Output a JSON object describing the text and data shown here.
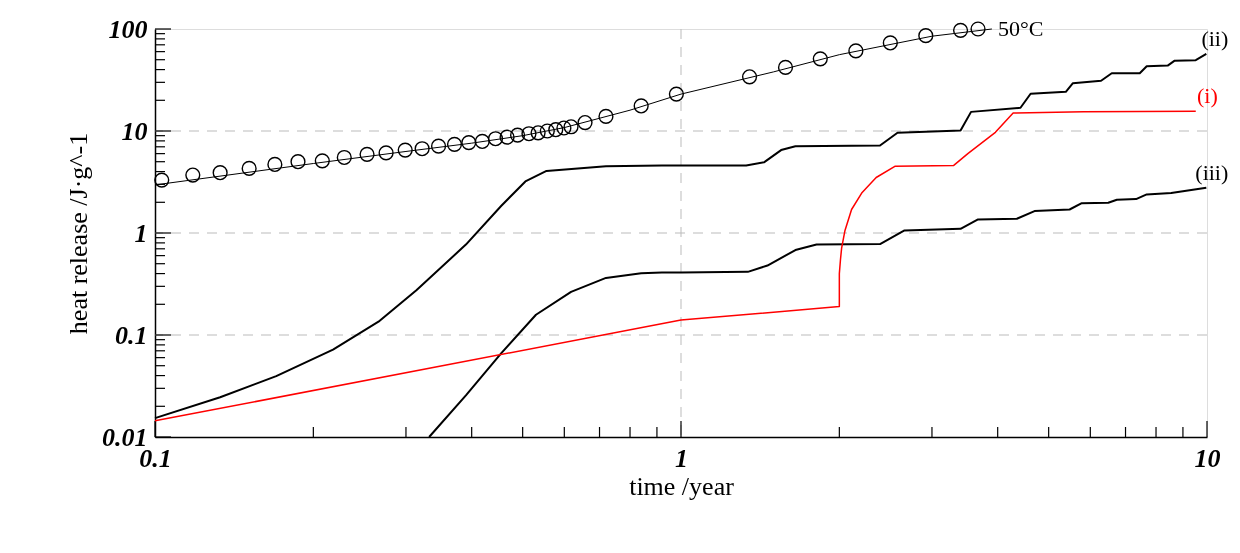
{
  "chart_data": {
    "type": "line",
    "xlabel": "time /year",
    "ylabel": "heat release /J·g^-1",
    "log": "xy",
    "grid": true,
    "legend": false,
    "xlim": [
      0.1,
      10
    ],
    "ylim": [
      0.01,
      100
    ],
    "xticks": [
      0.1,
      {
        "value": 0.2,
        "label": null
      },
      {
        "value": 0.3,
        "label": null
      },
      {
        "value": 0.4,
        "label": null
      },
      {
        "value": 0.5,
        "label": null
      },
      {
        "value": 0.6,
        "label": null
      },
      {
        "value": 0.7,
        "label": null
      },
      {
        "value": 0.8,
        "label": null
      },
      {
        "value": 0.9,
        "label": null
      },
      1,
      {
        "value": 2,
        "label": null
      },
      {
        "value": 3,
        "label": null
      },
      {
        "value": 4,
        "label": null
      },
      {
        "value": 5,
        "label": null
      },
      {
        "value": 6,
        "label": null
      },
      {
        "value": 7,
        "label": null
      },
      {
        "value": 8,
        "label": null
      },
      {
        "value": 9,
        "label": null
      },
      10
    ],
    "yticks": [
      0.01,
      {
        "value": 0.02,
        "label": null
      },
      {
        "value": 0.03,
        "label": null
      },
      {
        "value": 0.04,
        "label": null
      },
      {
        "value": 0.05,
        "label": null
      },
      {
        "value": 0.06,
        "label": null
      },
      {
        "value": 0.07,
        "label": null
      },
      {
        "value": 0.08,
        "label": null
      },
      {
        "value": 0.09,
        "label": null
      },
      0.1,
      {
        "value": 0.2,
        "label": null
      },
      {
        "value": 0.3,
        "label": null
      },
      {
        "value": 0.4,
        "label": null
      },
      {
        "value": 0.5,
        "label": null
      },
      {
        "value": 0.6,
        "label": null
      },
      {
        "value": 0.7,
        "label": null
      },
      {
        "value": 0.8,
        "label": null
      },
      {
        "value": 0.9,
        "label": null
      },
      1,
      {
        "value": 2,
        "label": null
      },
      {
        "value": 3,
        "label": null
      },
      {
        "value": 4,
        "label": null
      },
      {
        "value": 5,
        "label": null
      },
      {
        "value": 6,
        "label": null
      },
      {
        "value": 7,
        "label": null
      },
      {
        "value": 8,
        "label": null
      },
      {
        "value": 9,
        "label": null
      },
      10,
      {
        "value": 20,
        "label": null
      },
      {
        "value": 30,
        "label": null
      },
      {
        "value": 40,
        "label": null
      },
      {
        "value": 50,
        "label": null
      },
      {
        "value": 60,
        "label": null
      },
      {
        "value": 70,
        "label": null
      },
      {
        "value": 80,
        "label": null
      },
      {
        "value": 90,
        "label": null
      },
      100
    ],
    "series": [
      {
        "type": "scatter",
        "marker": "circle",
        "color": "#000000",
        "x": [
          0.103,
          0.118,
          0.133,
          0.151,
          0.169,
          0.187,
          0.208,
          0.229,
          0.253,
          0.275,
          0.299,
          0.322,
          0.346,
          0.371,
          0.395,
          0.419,
          0.444,
          0.467,
          0.489,
          0.514,
          0.535,
          0.557,
          0.578,
          0.599,
          0.618,
          0.657,
          0.72,
          0.84,
          0.98,
          1.35,
          1.58,
          1.84,
          2.15,
          2.5,
          2.92,
          3.4,
          3.67
        ],
        "values": [
          3.3,
          3.7,
          3.9,
          4.3,
          4.7,
          5.0,
          5.1,
          5.5,
          5.9,
          6.1,
          6.5,
          6.7,
          7.1,
          7.4,
          7.7,
          7.9,
          8.4,
          8.7,
          9.1,
          9.4,
          9.6,
          10.0,
          10.3,
          10.7,
          11.0,
          12.1,
          13.9,
          17.6,
          23,
          34,
          42,
          51,
          61,
          73,
          86,
          97,
          100
        ]
      },
      {
        "name": "50°C",
        "color": "#000000",
        "x": [
          0.1,
          0.2,
          0.3,
          0.4,
          0.5,
          0.6,
          0.8,
          1,
          1.5,
          2,
          3,
          3.9
        ],
        "values": [
          2.96,
          4.8,
          6.3,
          7.6,
          9.0,
          10.8,
          16,
          23,
          38,
          56,
          85,
          100
        ]
      },
      {
        "name": "(ii)",
        "color": "#000000",
        "x": [
          0.1,
          0.133,
          0.17,
          0.218,
          0.266,
          0.314,
          0.39,
          0.455,
          0.506,
          0.555,
          0.72,
          0.92,
          1.0,
          1.33,
          1.44,
          1.55,
          1.65,
          2.39,
          2.58,
          3.4,
          3.56,
          4.42,
          4.62,
          5.39,
          5.56,
          6.29,
          6.59,
          7.45,
          7.68,
          8.42,
          8.68,
          9.52,
          9.97
        ],
        "values": [
          0.0153,
          0.0245,
          0.0395,
          0.072,
          0.135,
          0.275,
          0.77,
          1.84,
          3.2,
          4.06,
          4.5,
          4.6,
          4.6,
          4.6,
          4.95,
          6.5,
          7.1,
          7.2,
          9.6,
          10.1,
          15.4,
          16.9,
          23.2,
          24.2,
          29.4,
          31.1,
          36.8,
          36.8,
          43.1,
          43.8,
          48.9,
          49.5,
          56.9
        ]
      },
      {
        "name": "(iii)",
        "color": "#000000",
        "x": [
          0.332,
          0.39,
          0.455,
          0.53,
          0.618,
          0.72,
          0.84,
          0.92,
          1.0,
          1.34,
          1.46,
          1.65,
          1.81,
          2.39,
          2.66,
          3.4,
          3.67,
          4.35,
          4.7,
          5.48,
          5.78,
          6.49,
          6.74,
          7.33,
          7.68,
          8.55,
          9.97
        ],
        "values": [
          0.01,
          0.0256,
          0.066,
          0.158,
          0.265,
          0.363,
          0.403,
          0.41,
          0.41,
          0.416,
          0.48,
          0.68,
          0.77,
          0.78,
          1.06,
          1.1,
          1.36,
          1.38,
          1.64,
          1.7,
          1.96,
          1.98,
          2.12,
          2.15,
          2.39,
          2.47,
          2.78
        ]
      },
      {
        "name": "(i)",
        "color": "#ff0000",
        "x": [
          0.1,
          1.0,
          2.0,
          2.0,
          2.01,
          2.02,
          2.05,
          2.11,
          2.21,
          2.35,
          2.55,
          3.3,
          3.51,
          3.96,
          4.28,
          5.82,
          9.52
        ],
        "values": [
          0.0144,
          0.14,
          0.19,
          0.4,
          0.55,
          0.71,
          1.06,
          1.7,
          2.5,
          3.5,
          4.5,
          4.6,
          6.0,
          9.7,
          15.0,
          15.4,
          15.6
        ]
      }
    ]
  }
}
